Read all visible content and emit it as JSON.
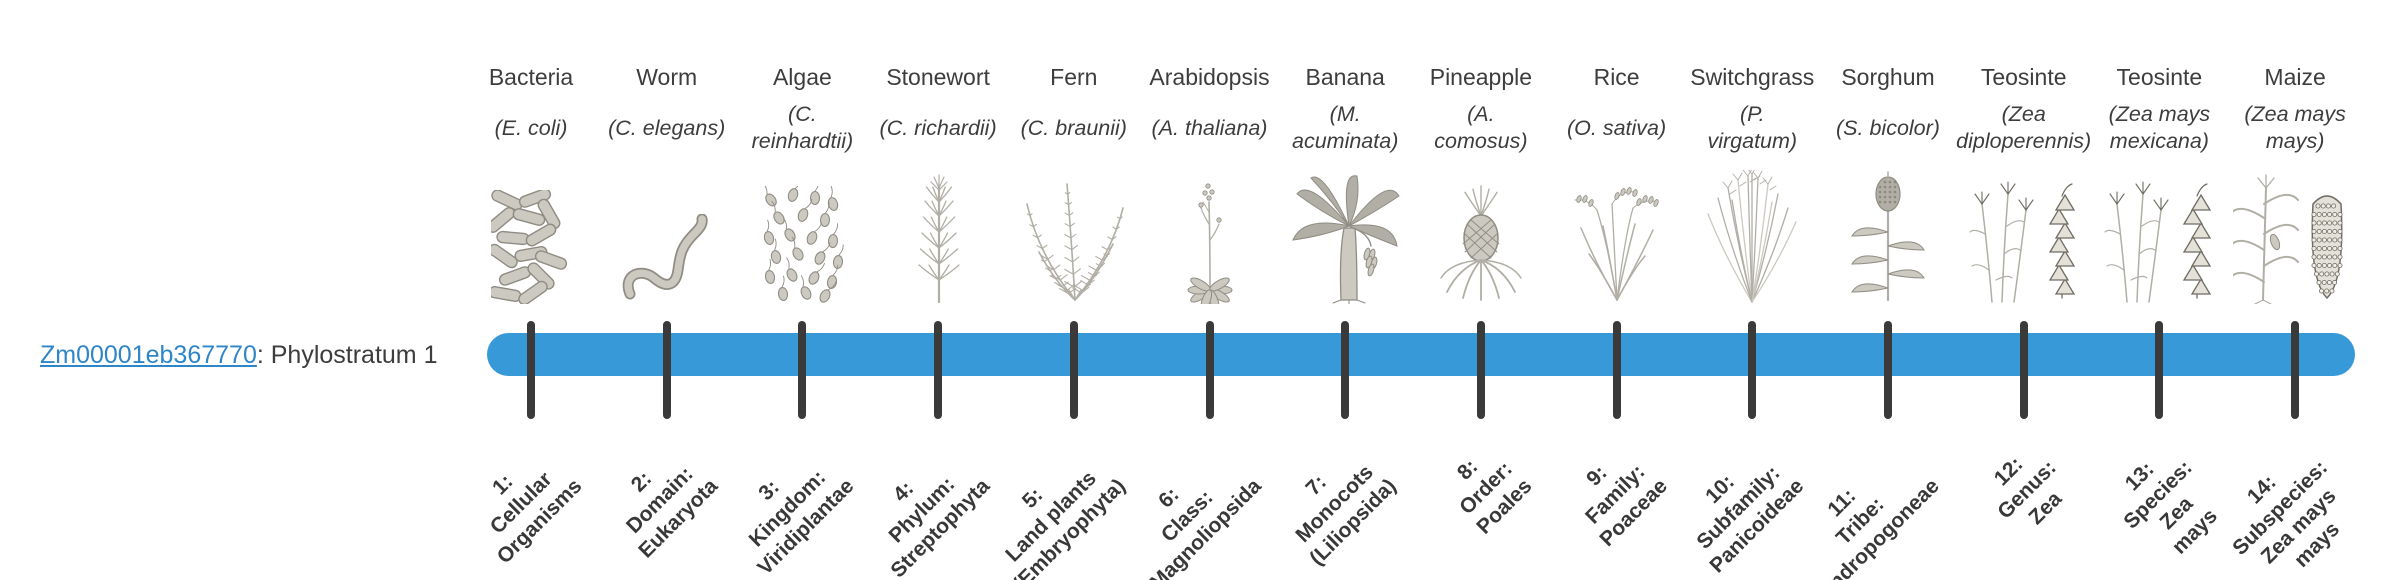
{
  "gene": {
    "id": "Zm00001eb367770",
    "label_suffix": ": Phylostratum 1"
  },
  "timeline": {
    "bar_color": "#3899d8",
    "tick_color": "#3a3a3a",
    "num_strata": 14
  },
  "strata": [
    {
      "index": 1,
      "organism": "Bacteria",
      "species_lines": [
        "(E. coli)"
      ],
      "icon": "bacteria-icon",
      "label_lines": [
        "1:",
        "Cellular",
        "Organisms"
      ]
    },
    {
      "index": 2,
      "organism": "Worm",
      "species_lines": [
        "(C. elegans)"
      ],
      "icon": "worm-icon",
      "label_lines": [
        "2:",
        "Domain:",
        "Eukaryota"
      ]
    },
    {
      "index": 3,
      "organism": "Algae",
      "species_lines": [
        "(C.",
        "reinhardtii)"
      ],
      "icon": "algae-icon",
      "label_lines": [
        "3:",
        "Kingdom:",
        "Viridiplantae"
      ]
    },
    {
      "index": 4,
      "organism": "Stonewort",
      "species_lines": [
        "(C. richardii)"
      ],
      "icon": "stonewort-icon",
      "label_lines": [
        "4:",
        "Phylum:",
        "Streptophyta"
      ]
    },
    {
      "index": 5,
      "organism": "Fern",
      "species_lines": [
        "(C. braunii)"
      ],
      "icon": "fern-icon",
      "label_lines": [
        "5:",
        "Land plants",
        "(Embryophyta)"
      ]
    },
    {
      "index": 6,
      "organism": "Arabidopsis",
      "species_lines": [
        "(A. thaliana)"
      ],
      "icon": "arabidopsis-icon",
      "label_lines": [
        "6:",
        "Class:",
        "Magnoliopsida"
      ]
    },
    {
      "index": 7,
      "organism": "Banana",
      "species_lines": [
        "(M.",
        "acuminata)"
      ],
      "icon": "banana-icon",
      "label_lines": [
        "7:",
        "Monocots",
        "(Liliopsida)"
      ]
    },
    {
      "index": 8,
      "organism": "Pineapple",
      "species_lines": [
        "(A.",
        "comosus)"
      ],
      "icon": "pineapple-icon",
      "label_lines": [
        "8:",
        "Order:",
        "Poales"
      ]
    },
    {
      "index": 9,
      "organism": "Rice",
      "species_lines": [
        "(O. sativa)"
      ],
      "icon": "rice-icon",
      "label_lines": [
        "9:",
        "Family:",
        "Poaceae"
      ]
    },
    {
      "index": 10,
      "organism": "Switchgrass",
      "species_lines": [
        "(P.",
        "virgatum)"
      ],
      "icon": "switchgrass-icon",
      "label_lines": [
        "10:",
        "Subfamily:",
        "Panicoideae"
      ]
    },
    {
      "index": 11,
      "organism": "Sorghum",
      "species_lines": [
        "(S. bicolor)"
      ],
      "icon": "sorghum-icon",
      "label_lines": [
        "11:",
        "Tribe:",
        "Andropogoneae"
      ]
    },
    {
      "index": 12,
      "organism": "Teosinte",
      "species_lines": [
        "(Zea",
        "diploperennis)"
      ],
      "icon": "teosinte-diploperennis-icon",
      "label_lines": [
        "12:",
        "Genus:",
        "Zea"
      ]
    },
    {
      "index": 13,
      "organism": "Teosinte",
      "species_lines": [
        "(Zea mays",
        "mexicana)"
      ],
      "icon": "teosinte-mexicana-icon",
      "label_lines": [
        "13:",
        "Species:",
        "Zea",
        "mays"
      ]
    },
    {
      "index": 14,
      "organism": "Maize",
      "species_lines": [
        "(Zea mays",
        "mays)"
      ],
      "icon": "maize-icon",
      "label_lines": [
        "14:",
        "Subspecies:",
        "Zea mays",
        "mays"
      ]
    }
  ]
}
